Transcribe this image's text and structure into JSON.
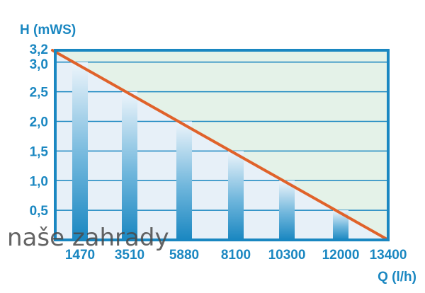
{
  "chart_data": {
    "type": "bar",
    "categories": [
      "1470",
      "3510",
      "5880",
      "8100",
      "10300",
      "12000",
      "13400"
    ],
    "values": [
      3.0,
      2.5,
      2.0,
      1.5,
      1.0,
      0.5,
      0
    ],
    "ylabel": "H (mWS)",
    "xlabel": "Q (l/h)",
    "yticks": [
      "3,2",
      "3,0",
      "2,5",
      "2,0",
      "1,5",
      "1,0",
      "0,5"
    ],
    "ytick_values": [
      3.2,
      3.0,
      2.5,
      2.0,
      1.5,
      1.0,
      0.5
    ],
    "ylim": [
      0,
      3.2
    ],
    "line": {
      "from": [
        1470,
        3.2
      ],
      "to": [
        13400,
        0
      ]
    },
    "grid": true
  },
  "watermark": "naše zahrady",
  "colors": {
    "frame": "#1a87c1",
    "line": "#e0622a",
    "plot_bg": "#e4f2e8",
    "bar_top": "#eef5fb",
    "bar_bottom": "#1a87c1"
  }
}
